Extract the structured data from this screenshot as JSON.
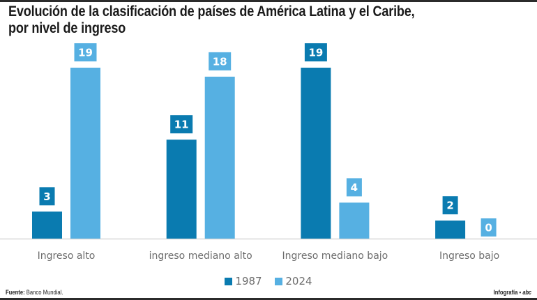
{
  "header": {
    "title_line1": "Evolución de la clasificación de países de América Latina y el Caribe,",
    "title_line2": "por nivel de ingreso"
  },
  "footer": {
    "source_label": "Fuente:",
    "source_text": "Banco Mundial.",
    "credit_text": "Infografía •",
    "brand": "abc"
  },
  "colors": {
    "series_1987": "#0a7bb0",
    "series_2024": "#56b0e2",
    "axis": "#d8d8d8"
  },
  "chart_data": {
    "type": "bar",
    "title": "Evolución de la clasificación de países de América Latina y el Caribe, por nivel de ingreso",
    "xlabel": "",
    "ylabel": "",
    "categories": [
      "Ingreso alto",
      "ingreso mediano alto",
      "Ingreso mediano bajo",
      "Ingreso bajo"
    ],
    "series": [
      {
        "name": "1987",
        "values": [
          3,
          11,
          19,
          2
        ]
      },
      {
        "name": "2024",
        "values": [
          19,
          18,
          4,
          0
        ]
      }
    ],
    "ylim": [
      0,
      19
    ],
    "grid": false,
    "legend": "bottom-center",
    "source": "Fuente: Banco Mundial."
  }
}
